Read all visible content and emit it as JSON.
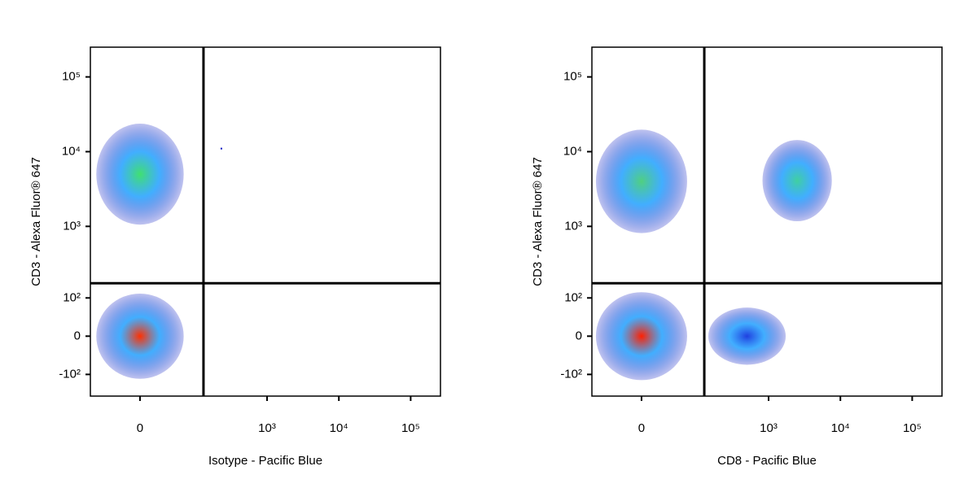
{
  "chart_data": [
    {
      "type": "scatter",
      "scale": "logicle",
      "x_label": "Isotype - Pacific Blue",
      "y_label": "CD3 - Alexa Fluor® 647",
      "xlim": [
        -80,
        260000
      ],
      "ylim": [
        -210,
        250000
      ],
      "xticks": [
        0,
        {
          "value": 1000,
          "label": "10³"
        },
        {
          "value": 10000,
          "label": "10⁴"
        },
        {
          "value": 100000,
          "label": "10⁵"
        }
      ],
      "yticks": [
        {
          "value": -100,
          "label": "-10²"
        },
        0,
        {
          "value": 100,
          "label": "10²"
        },
        {
          "value": 1000,
          "label": "10³"
        },
        {
          "value": 10000,
          "label": "10⁴"
        },
        {
          "value": 100000,
          "label": "10⁵"
        }
      ],
      "gates": {
        "x": 128,
        "y": 167
      },
      "populations": [
        {
          "x": 0,
          "y": 5000,
          "xrange": [
            -60,
            70
          ],
          "yrange": [
            800,
            18000
          ],
          "color": "#40e070"
        },
        {
          "x": 0,
          "y": 0,
          "xrange": [
            -60,
            70
          ],
          "yrange": [
            -90,
            150
          ],
          "color": "#ff3000"
        }
      ],
      "x": [
        230
      ],
      "y": [
        11000
      ]
    },
    {
      "type": "scatter",
      "scale": "logicle",
      "x_label": "CD8 - Pacific Blue",
      "y_label": "CD3 - Alexa Fluor® 647",
      "xlim": [
        -80,
        260000
      ],
      "ylim": [
        -210,
        250000
      ],
      "xticks": [
        0,
        {
          "value": 1000,
          "label": "10³"
        },
        {
          "value": 10000,
          "label": "10⁴"
        },
        {
          "value": 100000,
          "label": "10⁵"
        }
      ],
      "yticks": [
        {
          "value": -100,
          "label": "-10²"
        },
        0,
        {
          "value": 100,
          "label": "10²"
        },
        {
          "value": 1000,
          "label": "10³"
        },
        {
          "value": 10000,
          "label": "10⁴"
        },
        {
          "value": 100000,
          "label": "10⁵"
        }
      ],
      "gates": {
        "x": 125,
        "y": 167
      },
      "populations": [
        {
          "x": 0,
          "y": 4000,
          "xrange": [
            -60,
            80
          ],
          "yrange": [
            700,
            17000
          ],
          "color": "#50d080"
        },
        {
          "x": 2500,
          "y": 4100,
          "xrange": [
            670,
            6200
          ],
          "yrange": [
            750,
            9200
          ],
          "color": "#40d0a0"
        },
        {
          "x": 0,
          "y": 0,
          "xrange": [
            -60,
            80
          ],
          "yrange": [
            -100,
            150
          ],
          "color": "#ff2000"
        },
        {
          "x": 500,
          "y": 0,
          "xrange": [
            140,
            1700
          ],
          "yrange": [
            -73,
            63
          ],
          "color": "#2040e0"
        }
      ],
      "x": [],
      "y": []
    }
  ]
}
